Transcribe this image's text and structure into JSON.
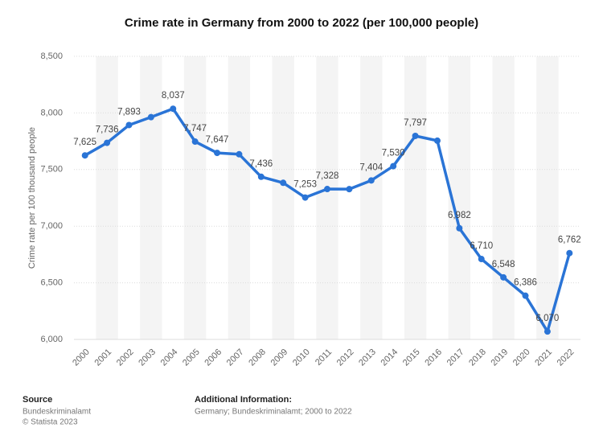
{
  "chart_data": {
    "type": "line",
    "title": "Crime rate in Germany from 2000 to 2022 (per 100,000 people)",
    "y_label": "Crime rate per 100 thousand people",
    "categories": [
      "2000",
      "2001",
      "2002",
      "2003",
      "2004",
      "2005",
      "2006",
      "2007",
      "2008",
      "2009",
      "2010",
      "2011",
      "2012",
      "2013",
      "2014",
      "2015",
      "2016",
      "2017",
      "2018",
      "2019",
      "2020",
      "2021",
      "2022"
    ],
    "series": [
      {
        "name": "Crime rate",
        "color": "#2a74d6",
        "values": [
          7625,
          7736,
          7893,
          7963,
          8037,
          7747,
          7647,
          7635,
          7436,
          7383,
          7253,
          7328,
          7327,
          7404,
          7530,
          7797,
          7755,
          6982,
          6710,
          6548,
          6386,
          6070,
          6762
        ],
        "value_labels": [
          "7,625",
          "7,736",
          "7,893",
          null,
          "8,037",
          "7,747",
          "7,647",
          null,
          "7,436",
          null,
          "7,253",
          "7,328",
          null,
          "7,404",
          "7,530",
          "7,797",
          null,
          "6,982",
          "6,710",
          "6,548",
          "6,386",
          "6,070",
          "6,762"
        ]
      }
    ],
    "ylim": [
      6000,
      8500
    ],
    "yticks": [
      {
        "value": 6000,
        "label": "6,000"
      },
      {
        "value": 6500,
        "label": "6,500"
      },
      {
        "value": 7000,
        "label": "7,000"
      },
      {
        "value": 7500,
        "label": "7,500"
      },
      {
        "value": 8000,
        "label": "8,000"
      },
      {
        "value": 8500,
        "label": "8,500"
      }
    ],
    "grid": true
  },
  "footer": {
    "source_title": "Source",
    "source": "Bundeskriminalamt",
    "copyright": "© Statista 2023",
    "info_title": "Additional Information:",
    "info": "Germany; Bundeskriminalamt; 2000 to 2022"
  }
}
